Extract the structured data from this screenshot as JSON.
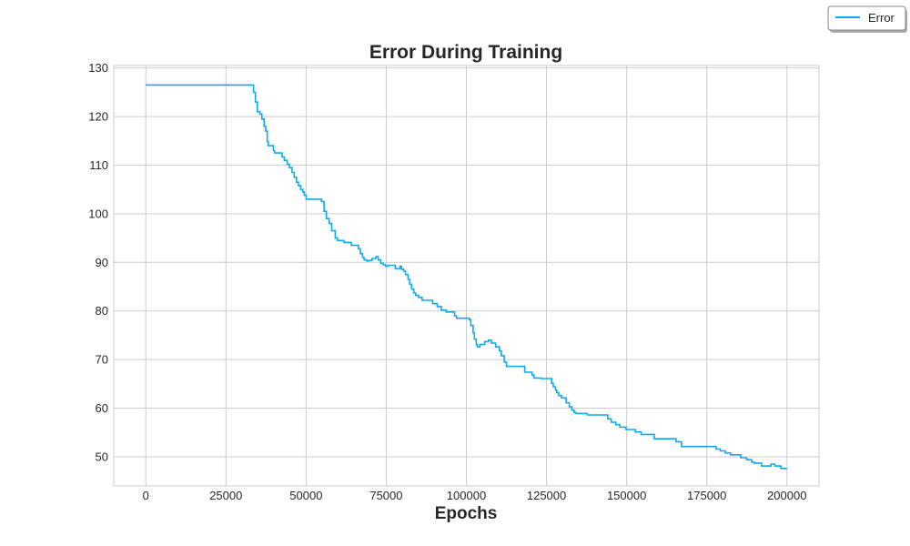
{
  "chart_data": {
    "type": "line",
    "title": "Error During Training",
    "xlabel": "Epochs",
    "ylabel": "",
    "xlim": [
      -10000,
      210000
    ],
    "ylim": [
      44,
      130.5
    ],
    "xticks": [
      0,
      25000,
      50000,
      75000,
      100000,
      125000,
      150000,
      175000,
      200000
    ],
    "yticks": [
      50,
      60,
      70,
      80,
      90,
      100,
      110,
      120,
      130
    ],
    "grid": true,
    "legend": {
      "position": "top-right-outside",
      "entries": [
        "Error"
      ]
    },
    "colors": {
      "line": "#12a8ec",
      "grid": "#cccccc",
      "frame": "#cccccc",
      "text": "#262626"
    },
    "series": [
      {
        "name": "Error",
        "step": true,
        "x": [
          0,
          33200,
          33600,
          34200,
          34800,
          35600,
          36200,
          36900,
          37400,
          37900,
          38200,
          39800,
          40200,
          42000,
          42500,
          43200,
          44100,
          44800,
          45600,
          46300,
          47000,
          47600,
          48300,
          49000,
          49400,
          50000,
          54000,
          54800,
          55600,
          56300,
          57200,
          58000,
          59100,
          59800,
          61200,
          61800,
          62500,
          64100,
          65100,
          66300,
          66900,
          67600,
          68100,
          68900,
          69600,
          70600,
          71800,
          72500,
          73300,
          74100,
          74800,
          75600,
          77800,
          78500,
          79300,
          79800,
          80400,
          81000,
          81800,
          82300,
          82900,
          83600,
          84200,
          85100,
          86200,
          88700,
          89500,
          90900,
          92200,
          93700,
          96300,
          96900,
          99100,
          100900,
          101400,
          102100,
          102500,
          103100,
          103400,
          104200,
          105700,
          106900,
          107800,
          109100,
          110300,
          110900,
          111800,
          112500,
          117500,
          118200,
          120500,
          121100,
          123400,
          125900,
          126600,
          127100,
          127800,
          128200,
          128800,
          129700,
          131100,
          132100,
          132900,
          133600,
          134300,
          135300,
          137700,
          138600,
          139400,
          143000,
          144100,
          145200,
          146600,
          147900,
          149800,
          152700,
          153400,
          154500,
          157500,
          158600,
          162000,
          165400,
          167100,
          168500,
          175800,
          177900,
          179200,
          180800,
          182400,
          183500,
          185600,
          187400,
          189000,
          189800,
          192100,
          193600,
          195000,
          196200,
          198100,
          200000
        ],
        "y": [
          126.5,
          126.5,
          125,
          123,
          121,
          120.5,
          119.5,
          118,
          117,
          114.8,
          114,
          113,
          112.5,
          112.5,
          111.7,
          111,
          110.2,
          109.5,
          108.5,
          107.5,
          106.5,
          105.8,
          105,
          104.5,
          103.8,
          103,
          103,
          102.5,
          100.5,
          99,
          98,
          96.5,
          95,
          94.5,
          94.5,
          94.1,
          94.1,
          93.5,
          93.5,
          92.8,
          91.8,
          91,
          90.5,
          90.3,
          90.4,
          90.8,
          91.2,
          90.5,
          89.8,
          89.5,
          89.2,
          89.4,
          88.7,
          88.7,
          89.2,
          88.6,
          88.2,
          87.5,
          86.5,
          85.5,
          84.5,
          83.7,
          83.2,
          82.8,
          82.2,
          82.2,
          81.5,
          80.9,
          80.2,
          79.8,
          79,
          78.5,
          78.5,
          78.2,
          77,
          75.5,
          74.2,
          73.1,
          72.6,
          73.1,
          73.7,
          74,
          73.4,
          72.6,
          71.8,
          70.8,
          69.5,
          68.6,
          68.6,
          67.4,
          66.8,
          66.2,
          66.1,
          66.1,
          65.1,
          64.4,
          63.7,
          63.2,
          62.6,
          62.1,
          61.1,
          60.3,
          59.6,
          59.1,
          58.9,
          58.9,
          58.6,
          58.6,
          58.6,
          58.6,
          57.8,
          57.1,
          56.6,
          56.1,
          55.6,
          55.1,
          55.1,
          54.6,
          54.6,
          53.7,
          53.7,
          53.1,
          52.1,
          52.1,
          52.1,
          51.6,
          51.2,
          50.8,
          50.4,
          50.4,
          49.8,
          49.4,
          48.9,
          48.7,
          48.1,
          48.1,
          48.5,
          48.1,
          47.6,
          47.6
        ]
      }
    ]
  }
}
